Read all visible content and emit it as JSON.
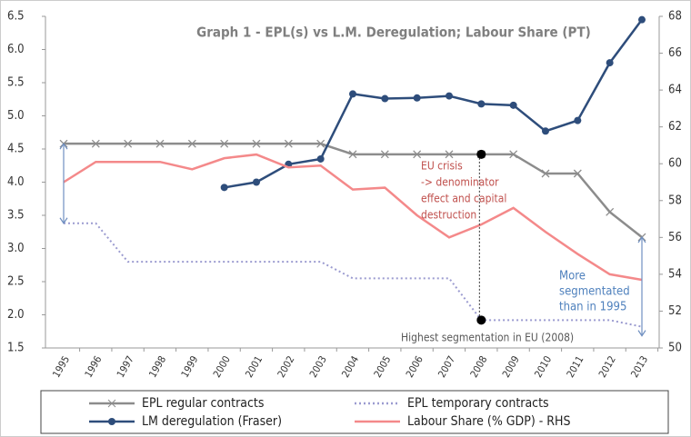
{
  "chart_data": {
    "type": "line",
    "title": "Graph 1 - EPL(s) vs L.M. Deregulation; Labour Share (PT)",
    "categories": [
      "1995",
      "1996",
      "1997",
      "1998",
      "1999",
      "2000",
      "2001",
      "2002",
      "2003",
      "2004",
      "2005",
      "2006",
      "2007",
      "2008",
      "2009",
      "2010",
      "2011",
      "2012",
      "2013"
    ],
    "ylim": [
      1.5,
      6.5
    ],
    "yticks": [
      1.5,
      {
        "value": 2,
        "label": "2.0"
      },
      2.5,
      {
        "value": 3,
        "label": "3.0"
      },
      3.5,
      {
        "value": 4,
        "label": "4.0"
      },
      4.5,
      {
        "value": 5,
        "label": "5.0"
      },
      5.5,
      {
        "value": 6,
        "label": "6.0"
      },
      6.5
    ],
    "y2lim": [
      50,
      68
    ],
    "y2ticks": [
      50,
      52,
      54,
      56,
      58,
      60,
      62,
      64,
      66,
      68
    ],
    "grid": false,
    "series": [
      {
        "name": "EPL regular contracts",
        "color": "#8c8c8c",
        "marker": "x",
        "linestyle": "solid",
        "values": [
          4.58,
          4.58,
          4.58,
          4.58,
          4.58,
          4.58,
          4.58,
          4.58,
          4.58,
          4.42,
          4.42,
          4.42,
          4.42,
          4.42,
          4.42,
          4.13,
          4.13,
          3.55,
          3.17
        ]
      },
      {
        "name": "EPL temporary contracts",
        "color": "#9b9bd0",
        "marker": null,
        "linestyle": "dotted",
        "values": [
          3.38,
          3.38,
          2.8,
          2.8,
          2.8,
          2.8,
          2.8,
          2.8,
          2.8,
          2.55,
          2.55,
          2.55,
          2.55,
          1.92,
          1.92,
          1.92,
          1.92,
          1.92,
          1.82
        ]
      },
      {
        "name": "LM deregulation (Fraser)",
        "color": "#2e4d7b",
        "marker": "circle",
        "linestyle": "solid",
        "values": [
          null,
          null,
          null,
          null,
          null,
          3.92,
          4.0,
          4.27,
          4.35,
          5.33,
          5.26,
          5.27,
          5.3,
          5.18,
          5.16,
          4.77,
          4.93,
          5.8,
          6.45
        ]
      },
      {
        "name": "Labour Share (% GDP) - RHS",
        "color": "#f4898a",
        "marker": null,
        "linestyle": "solid",
        "axis": "y2",
        "values": [
          59.0,
          60.1,
          60.1,
          60.1,
          59.7,
          60.3,
          60.5,
          59.8,
          59.9,
          58.6,
          58.7,
          57.2,
          56.0,
          56.7,
          57.6,
          56.3,
          55.1,
          54.0,
          53.7
        ]
      }
    ],
    "annotations": {
      "eu_crisis": [
        "EU crisis",
        " -> denominator",
        " effect and capital",
        " destruction"
      ],
      "segmentation": [
        "More",
        "segmentated",
        "than in 1995"
      ],
      "highest": "Highest segmentation  in EU (2008)"
    }
  }
}
